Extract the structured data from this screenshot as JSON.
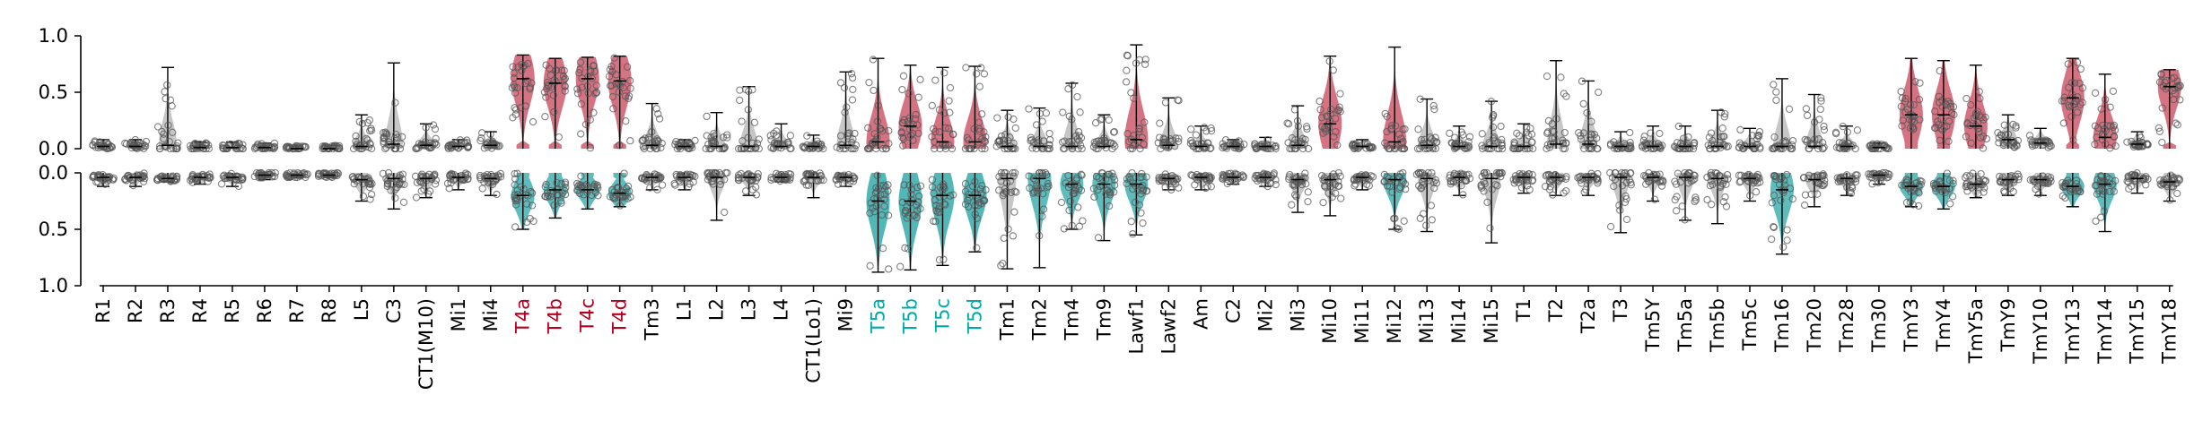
{
  "chart_data": {
    "type": "violin",
    "categories": [
      "R1",
      "R2",
      "R3",
      "R4",
      "R5",
      "R6",
      "R7",
      "R8",
      "L5",
      "C3",
      "CT1(M10)",
      "Mi1",
      "Mi4",
      "T4a",
      "T4b",
      "T4c",
      "T4d",
      "Tm3",
      "L1",
      "L2",
      "L3",
      "L4",
      "CT1(Lo1)",
      "Mi9",
      "T5a",
      "T5b",
      "T5c",
      "T5d",
      "Tm1",
      "Tm2",
      "Tm4",
      "Tm9",
      "Lawf1",
      "Lawf2",
      "Am",
      "C2",
      "Mi2",
      "Mi3",
      "Mi10",
      "Mi11",
      "Mi12",
      "Mi13",
      "Mi14",
      "Mi15",
      "T1",
      "T2",
      "T2a",
      "T3",
      "Tm5Y",
      "Tm5a",
      "Tm5b",
      "Tm5c",
      "Tm16",
      "Tm20",
      "Tm28",
      "Tm30",
      "TmY3",
      "TmY4",
      "TmY5a",
      "TmY9",
      "TmY10",
      "TmY13",
      "TmY14",
      "TmY15",
      "TmY18"
    ],
    "highlight_on": [
      "T4a",
      "T4b",
      "T4c",
      "T4d"
    ],
    "highlight_off": [
      "T5a",
      "T5b",
      "T5c",
      "T5d"
    ],
    "top_panel": {
      "yticks": [
        "0.0",
        "0.5",
        "1.0"
      ],
      "ylim": [
        0,
        1
      ],
      "median": [
        0.02,
        0.02,
        0.03,
        0.01,
        0.01,
        0.01,
        0.0,
        0.0,
        0.02,
        0.04,
        0.03,
        0.02,
        0.03,
        0.62,
        0.58,
        0.62,
        0.6,
        0.03,
        0.02,
        0.02,
        0.02,
        0.02,
        0.02,
        0.03,
        0.06,
        0.2,
        0.06,
        0.06,
        0.02,
        0.02,
        0.02,
        0.02,
        0.08,
        0.03,
        0.02,
        0.02,
        0.02,
        0.03,
        0.22,
        0.02,
        0.06,
        0.03,
        0.02,
        0.02,
        0.02,
        0.04,
        0.04,
        0.02,
        0.02,
        0.02,
        0.02,
        0.02,
        0.02,
        0.02,
        0.02,
        0.01,
        0.3,
        0.3,
        0.2,
        0.08,
        0.05,
        0.45,
        0.1,
        0.04,
        0.55
      ],
      "max": [
        0.08,
        0.08,
        0.72,
        0.06,
        0.06,
        0.05,
        0.03,
        0.03,
        0.3,
        0.76,
        0.22,
        0.08,
        0.15,
        0.83,
        0.8,
        0.81,
        0.82,
        0.4,
        0.08,
        0.32,
        0.55,
        0.22,
        0.12,
        0.68,
        0.8,
        0.74,
        0.72,
        0.73,
        0.34,
        0.36,
        0.58,
        0.3,
        0.92,
        0.45,
        0.2,
        0.08,
        0.1,
        0.38,
        0.82,
        0.08,
        0.9,
        0.44,
        0.2,
        0.42,
        0.22,
        0.78,
        0.6,
        0.15,
        0.2,
        0.2,
        0.34,
        0.18,
        0.62,
        0.48,
        0.2,
        0.05,
        0.8,
        0.78,
        0.74,
        0.3,
        0.18,
        0.8,
        0.66,
        0.15,
        0.7
      ],
      "highlight_violin": [
        false,
        false,
        false,
        false,
        false,
        false,
        false,
        false,
        false,
        false,
        false,
        false,
        false,
        true,
        true,
        true,
        true,
        false,
        false,
        false,
        false,
        false,
        false,
        false,
        true,
        true,
        true,
        true,
        false,
        false,
        false,
        false,
        true,
        false,
        false,
        false,
        false,
        false,
        true,
        false,
        true,
        false,
        false,
        false,
        false,
        false,
        false,
        false,
        false,
        false,
        false,
        false,
        false,
        false,
        false,
        false,
        true,
        true,
        true,
        false,
        false,
        true,
        true,
        false,
        true
      ]
    },
    "bottom_panel": {
      "yticks": [
        "0.0",
        "0.5",
        "1.0"
      ],
      "ylim": [
        0,
        1
      ],
      "inverted": true,
      "median": [
        0.04,
        0.04,
        0.05,
        0.04,
        0.04,
        0.02,
        0.02,
        0.02,
        0.06,
        0.05,
        0.05,
        0.04,
        0.05,
        0.2,
        0.15,
        0.15,
        0.18,
        0.04,
        0.04,
        0.04,
        0.04,
        0.04,
        0.04,
        0.04,
        0.25,
        0.25,
        0.2,
        0.2,
        0.05,
        0.05,
        0.1,
        0.1,
        0.1,
        0.05,
        0.04,
        0.04,
        0.04,
        0.06,
        0.06,
        0.04,
        0.06,
        0.05,
        0.04,
        0.05,
        0.04,
        0.04,
        0.04,
        0.04,
        0.04,
        0.04,
        0.05,
        0.05,
        0.15,
        0.06,
        0.05,
        0.02,
        0.12,
        0.12,
        0.1,
        0.06,
        0.06,
        0.12,
        0.1,
        0.05,
        0.08
      ],
      "max": [
        0.12,
        0.12,
        0.08,
        0.1,
        0.12,
        0.06,
        0.04,
        0.04,
        0.25,
        0.32,
        0.22,
        0.15,
        0.2,
        0.5,
        0.4,
        0.32,
        0.3,
        0.15,
        0.15,
        0.42,
        0.2,
        0.08,
        0.22,
        0.12,
        0.88,
        0.86,
        0.82,
        0.7,
        0.85,
        0.84,
        0.5,
        0.6,
        0.55,
        0.15,
        0.15,
        0.1,
        0.12,
        0.35,
        0.38,
        0.15,
        0.5,
        0.52,
        0.2,
        0.62,
        0.18,
        0.2,
        0.2,
        0.53,
        0.25,
        0.42,
        0.45,
        0.25,
        0.72,
        0.3,
        0.2,
        0.1,
        0.3,
        0.32,
        0.22,
        0.2,
        0.2,
        0.3,
        0.52,
        0.18,
        0.25
      ],
      "highlight_violin": [
        false,
        false,
        false,
        false,
        false,
        false,
        false,
        false,
        false,
        false,
        false,
        false,
        false,
        true,
        true,
        true,
        true,
        false,
        false,
        false,
        false,
        false,
        false,
        false,
        true,
        true,
        true,
        true,
        false,
        true,
        true,
        true,
        true,
        false,
        false,
        false,
        false,
        false,
        false,
        false,
        true,
        false,
        false,
        false,
        false,
        false,
        false,
        false,
        false,
        false,
        false,
        false,
        true,
        false,
        false,
        false,
        true,
        true,
        false,
        false,
        false,
        true,
        true,
        false,
        false
      ]
    },
    "colors": {
      "on_label": "#b2001e",
      "off_label": "#00a8a8",
      "default_label": "#000000",
      "on_violin": "#c3384f",
      "off_violin": "#1a9fa0",
      "neutral_violin": "#5d5d5d",
      "point_stroke": "#555555"
    },
    "grid": false,
    "legend": "none"
  }
}
